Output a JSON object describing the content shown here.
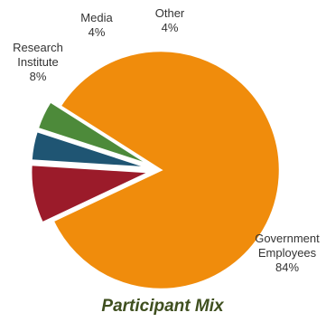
{
  "chart_data": {
    "type": "pie",
    "title": "Participant Mix",
    "slices": [
      {
        "label": [
          "Government",
          "Employees"
        ],
        "percent_label": "84%",
        "value": 84,
        "color": "#f08c0c"
      },
      {
        "label": [
          "Research",
          "Institute"
        ],
        "percent_label": "8%",
        "value": 8,
        "color": "#9b1b2a"
      },
      {
        "label": [
          "Media"
        ],
        "percent_label": "4%",
        "value": 4,
        "color": "#1f5573"
      },
      {
        "label": [
          "Other"
        ],
        "percent_label": "4%",
        "value": 4,
        "color": "#4d8a3a"
      }
    ],
    "exploded": true,
    "legend": "none"
  }
}
